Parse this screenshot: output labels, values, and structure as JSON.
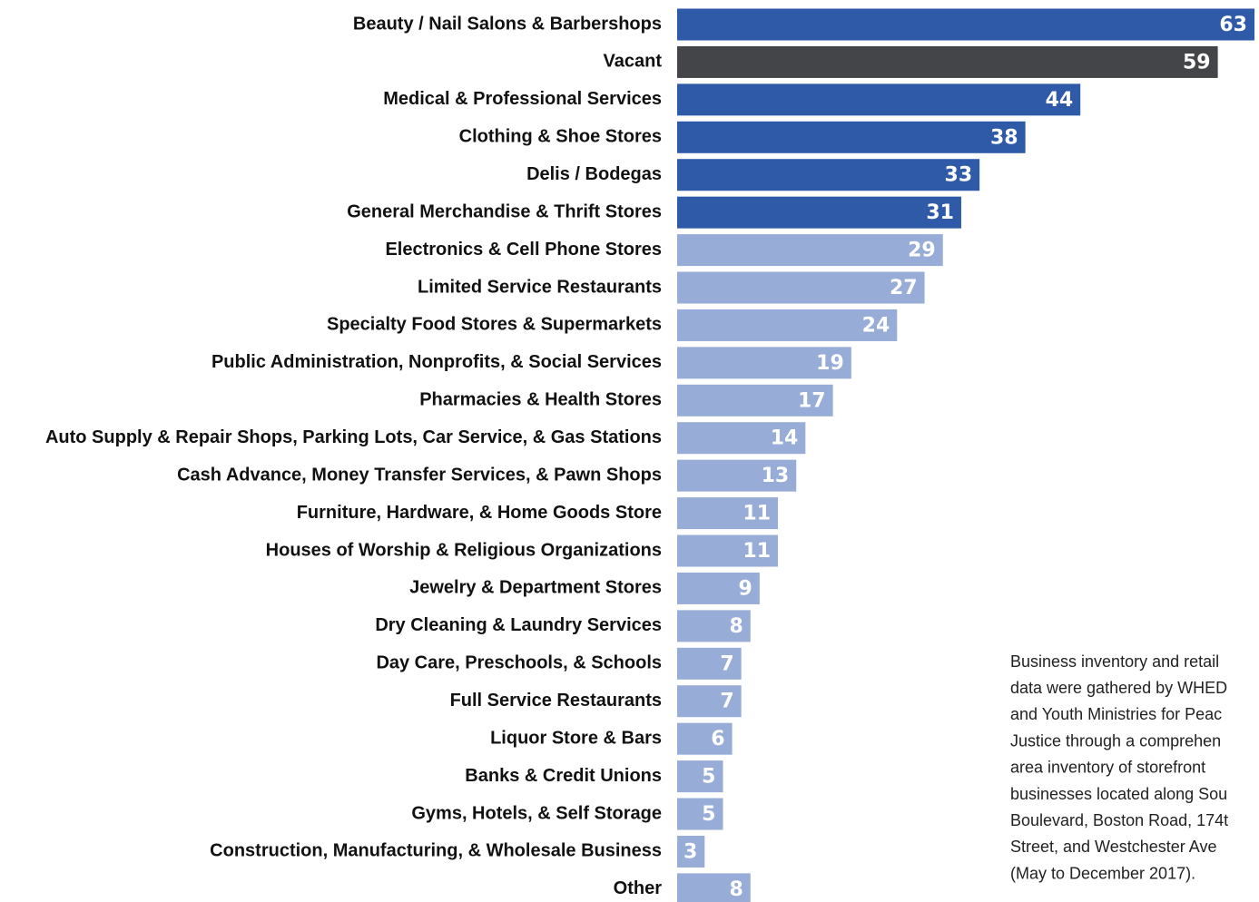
{
  "chart_data": {
    "type": "bar",
    "orientation": "horizontal",
    "categories": [
      "Beauty / Nail Salons & Barbershops",
      "Vacant",
      "Medical & Professional Services",
      "Clothing & Shoe Stores",
      "Delis / Bodegas",
      "General Merchandise & Thrift Stores",
      "Electronics & Cell Phone Stores",
      "Limited Service Restaurants",
      "Specialty Food Stores & Supermarkets",
      "Public Administration, Nonprofits, & Social Services",
      "Pharmacies & Health Stores",
      "Auto Supply & Repair Shops, Parking Lots, Car Service, & Gas Stations",
      "Cash Advance, Money Transfer Services, & Pawn Shops",
      "Furniture, Hardware, & Home Goods Store",
      "Houses of Worship & Religious Organizations",
      "Jewelry & Department Stores",
      "Dry Cleaning & Laundry Services",
      "Day Care, Preschools, & Schools",
      "Full Service Restaurants",
      "Liquor Store & Bars",
      "Banks & Credit Unions",
      "Gyms, Hotels, & Self Storage",
      "Construction, Manufacturing, & Wholesale Business",
      "Other"
    ],
    "values": [
      63,
      59,
      44,
      38,
      33,
      31,
      29,
      27,
      24,
      19,
      17,
      14,
      13,
      11,
      11,
      9,
      8,
      7,
      7,
      6,
      5,
      5,
      3,
      8
    ],
    "colors": [
      "#2f5aa8",
      "#444548",
      "#2f5aa8",
      "#2f5aa8",
      "#2f5aa8",
      "#2f5aa8",
      "#97acd6",
      "#97acd6",
      "#97acd6",
      "#97acd6",
      "#97acd6",
      "#97acd6",
      "#97acd6",
      "#97acd6",
      "#97acd6",
      "#97acd6",
      "#97acd6",
      "#97acd6",
      "#97acd6",
      "#97acd6",
      "#97acd6",
      "#97acd6",
      "#97acd6",
      "#97acd6"
    ],
    "annotation": [
      "Business inventory and retail",
      "data were gathered by WHED",
      "and Youth Ministries for Peac",
      "Justice through a comprehen",
      "area inventory of storefront",
      "businesses located along Sou",
      "Boulevard, Boston Road, 174t",
      "Street, and Westchester Ave",
      "(May to December 2017)."
    ]
  }
}
